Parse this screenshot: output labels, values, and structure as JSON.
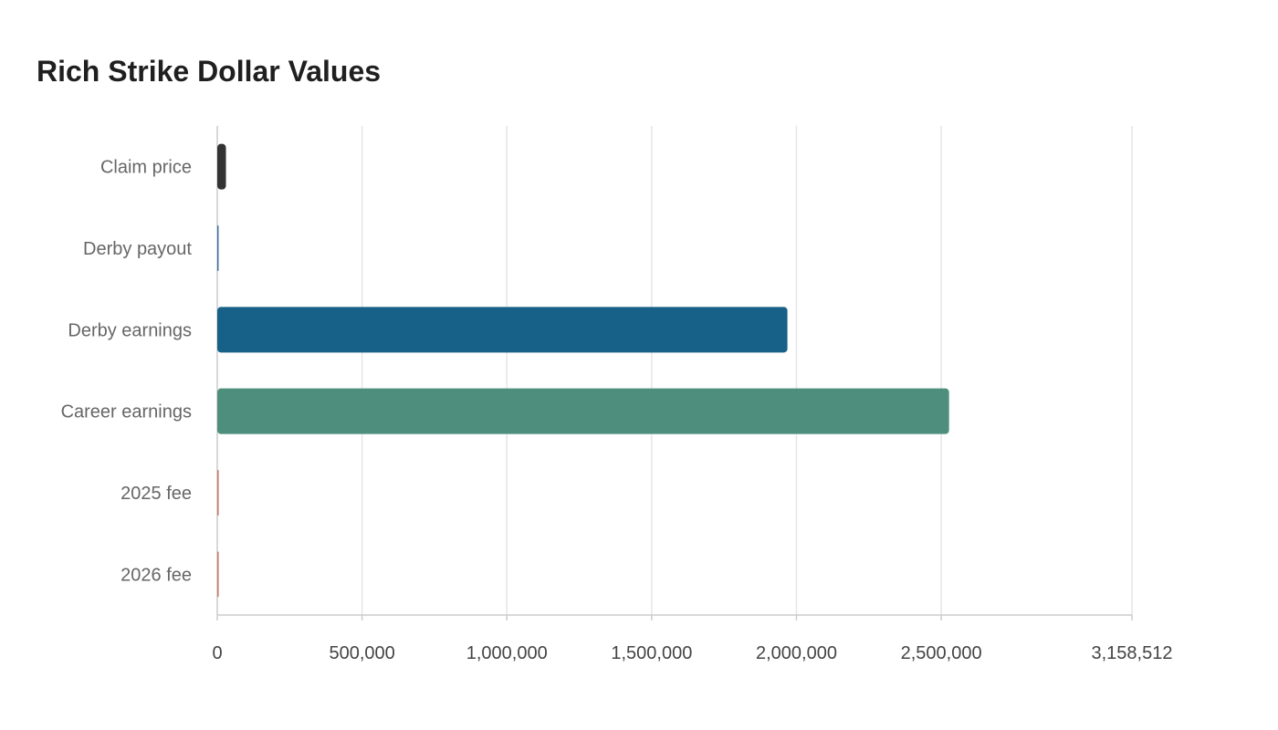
{
  "chart_data": {
    "type": "bar",
    "orientation": "horizontal",
    "title": "Rich Strike Dollar Values",
    "categories": [
      "Claim price",
      "Derby payout",
      "Derby earnings",
      "Career earnings",
      "2025 fee",
      "2026 fee"
    ],
    "values": [
      30000,
      163.6,
      1968800,
      2527000,
      5000,
      5000
    ],
    "colors": [
      "#333333",
      "#3f6fa8",
      "#176088",
      "#4e8e7c",
      "#c97a6a",
      "#c97a6a"
    ],
    "xlim": [
      0,
      3158512
    ],
    "xticks": [
      0,
      500000,
      1000000,
      1500000,
      2000000,
      2500000,
      3158512
    ],
    "xtick_labels": [
      "0",
      "500,000",
      "1,000,000",
      "1,500,000",
      "2,000,000",
      "2,500,000",
      "3,158,512"
    ],
    "grid": true,
    "legend": "none"
  }
}
